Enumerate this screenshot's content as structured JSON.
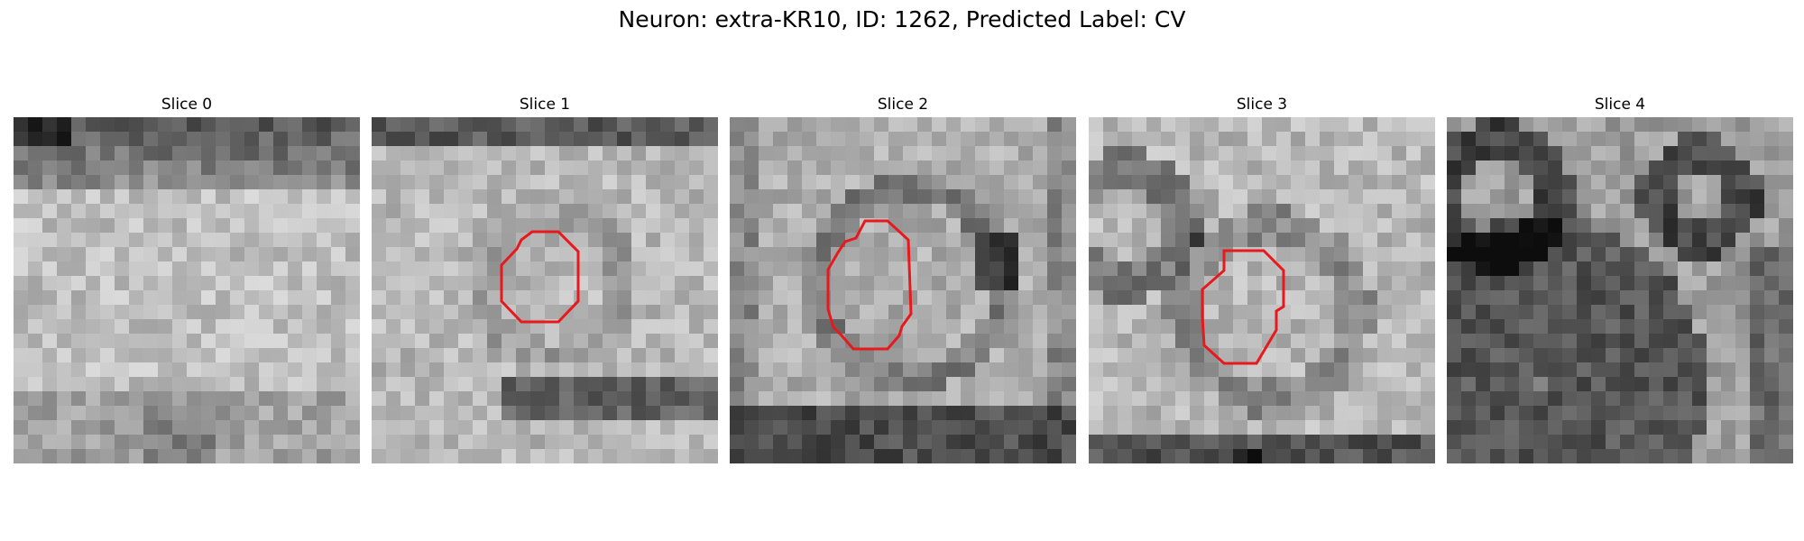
{
  "figure": {
    "title": "Neuron: extra-KR10, ID: 1262, Predicted Label: CV"
  },
  "slices": [
    {
      "title": "Slice 0",
      "has_contour": false
    },
    {
      "title": "Slice 1",
      "has_contour": true
    },
    {
      "title": "Slice 2",
      "has_contour": true
    },
    {
      "title": "Slice 3",
      "has_contour": true
    },
    {
      "title": "Slice 4",
      "has_contour": false
    }
  ],
  "colors": {
    "contour": "#e8191c",
    "background": "#ffffff"
  }
}
